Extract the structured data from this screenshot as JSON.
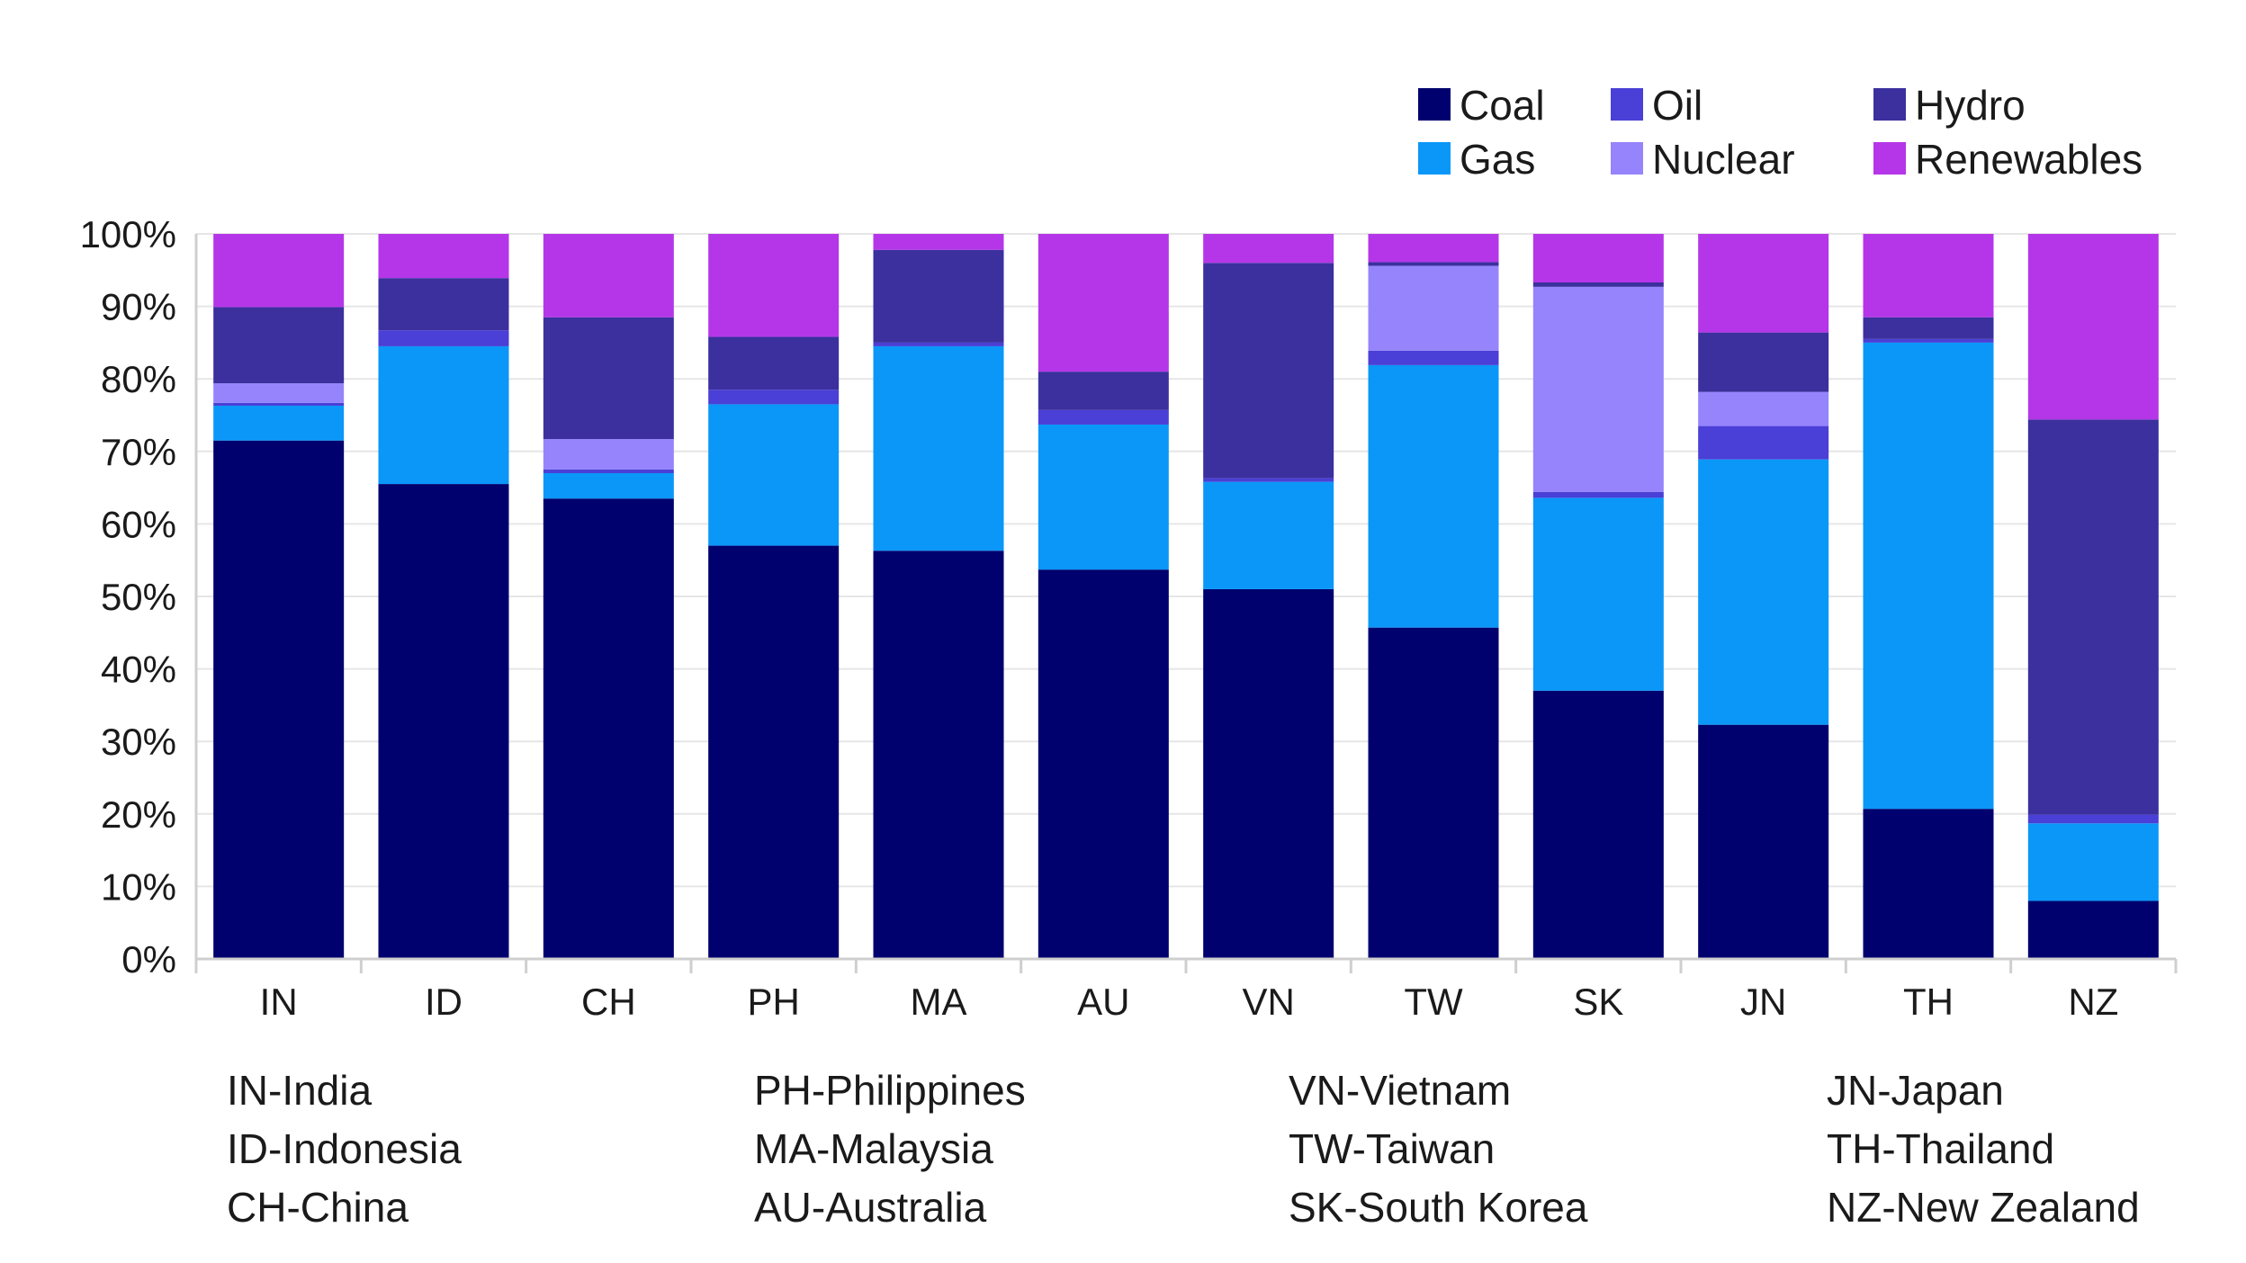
{
  "chart_data": {
    "type": "bar",
    "stacked": true,
    "categories": [
      "IN",
      "ID",
      "CH",
      "PH",
      "MA",
      "AU",
      "VN",
      "TW",
      "SK",
      "JN",
      "TH",
      "NZ"
    ],
    "series": [
      {
        "name": "Coal",
        "color": "#00006e",
        "values": [
          71.5,
          65.5,
          63.5,
          57,
          56.3,
          53.7,
          51,
          45.7,
          37,
          32.3,
          20.7,
          8
        ]
      },
      {
        "name": "Gas",
        "color": "#0a97f8",
        "values": [
          4.8,
          19,
          3.5,
          19.5,
          28.2,
          20,
          14.8,
          36.2,
          26.6,
          36.6,
          64.3,
          10.7
        ]
      },
      {
        "name": "Oil",
        "color": "#4a3fd6",
        "values": [
          0.4,
          2.2,
          0.5,
          2,
          0.5,
          2,
          0.5,
          2,
          0.8,
          4.6,
          0.5,
          1.2
        ]
      },
      {
        "name": "Nuclear",
        "color": "#9584fb",
        "values": [
          2.7,
          0,
          4.2,
          0,
          0,
          0,
          0,
          11.7,
          28.3,
          4.7,
          0,
          0
        ]
      },
      {
        "name": "Hydro",
        "color": "#3b309e",
        "values": [
          10.5,
          7.2,
          16.8,
          7.3,
          12.8,
          5.3,
          29.7,
          0.5,
          0.6,
          8.2,
          3,
          54.5
        ]
      },
      {
        "name": "Renewables",
        "color": "#b536e8",
        "values": [
          10.1,
          6.1,
          11.5,
          14.2,
          2.2,
          19,
          4,
          3.9,
          6.7,
          13.6,
          11.5,
          25.6
        ]
      }
    ],
    "yticks": [
      "0%",
      "10%",
      "20%",
      "30%",
      "40%",
      "50%",
      "60%",
      "70%",
      "80%",
      "90%",
      "100%"
    ],
    "ylim": [
      0,
      100
    ],
    "legend": [
      "Coal",
      "Oil",
      "Hydro",
      "Gas",
      "Nuclear",
      "Renewables"
    ],
    "legend_placement": "top-right"
  },
  "glossary": {
    "col1": [
      "IN-India",
      "ID-Indonesia",
      "CH-China"
    ],
    "col2": [
      "PH-Philippines",
      "MA-Malaysia",
      "AU-Australia"
    ],
    "col3": [
      "VN-Vietnam",
      "TW-Taiwan",
      "SK-South Korea"
    ],
    "col4": [
      "JN-Japan",
      "TH-Thailand",
      "NZ-New Zealand"
    ]
  }
}
